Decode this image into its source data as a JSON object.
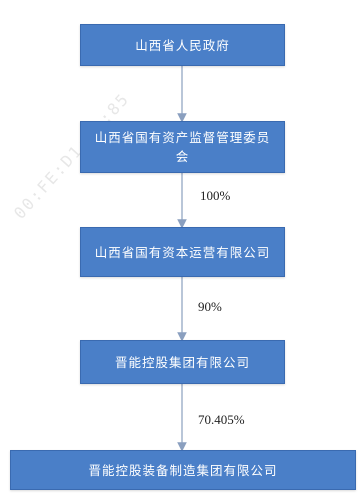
{
  "nodes": [
    {
      "id": "n1",
      "label": "山西省人民政府"
    },
    {
      "id": "n2",
      "label": "山西省国有资产监督管理委员会"
    },
    {
      "id": "n3",
      "label": "山西省国有资本运营有限公司"
    },
    {
      "id": "n4",
      "label": "晋能控股集团有限公司"
    },
    {
      "id": "n5",
      "label": "晋能控股装备制造集团有限公司"
    }
  ],
  "edges": [
    {
      "from": "n1",
      "to": "n2",
      "label": ""
    },
    {
      "from": "n2",
      "to": "n3",
      "label": "100%"
    },
    {
      "from": "n3",
      "to": "n4",
      "label": "90%"
    },
    {
      "from": "n4",
      "to": "n5",
      "label": "70.405%"
    }
  ],
  "watermark": "00:FE:D1:5D:85",
  "colors": {
    "box": "#4a7fc8",
    "arrow": "#8a9fbf"
  }
}
